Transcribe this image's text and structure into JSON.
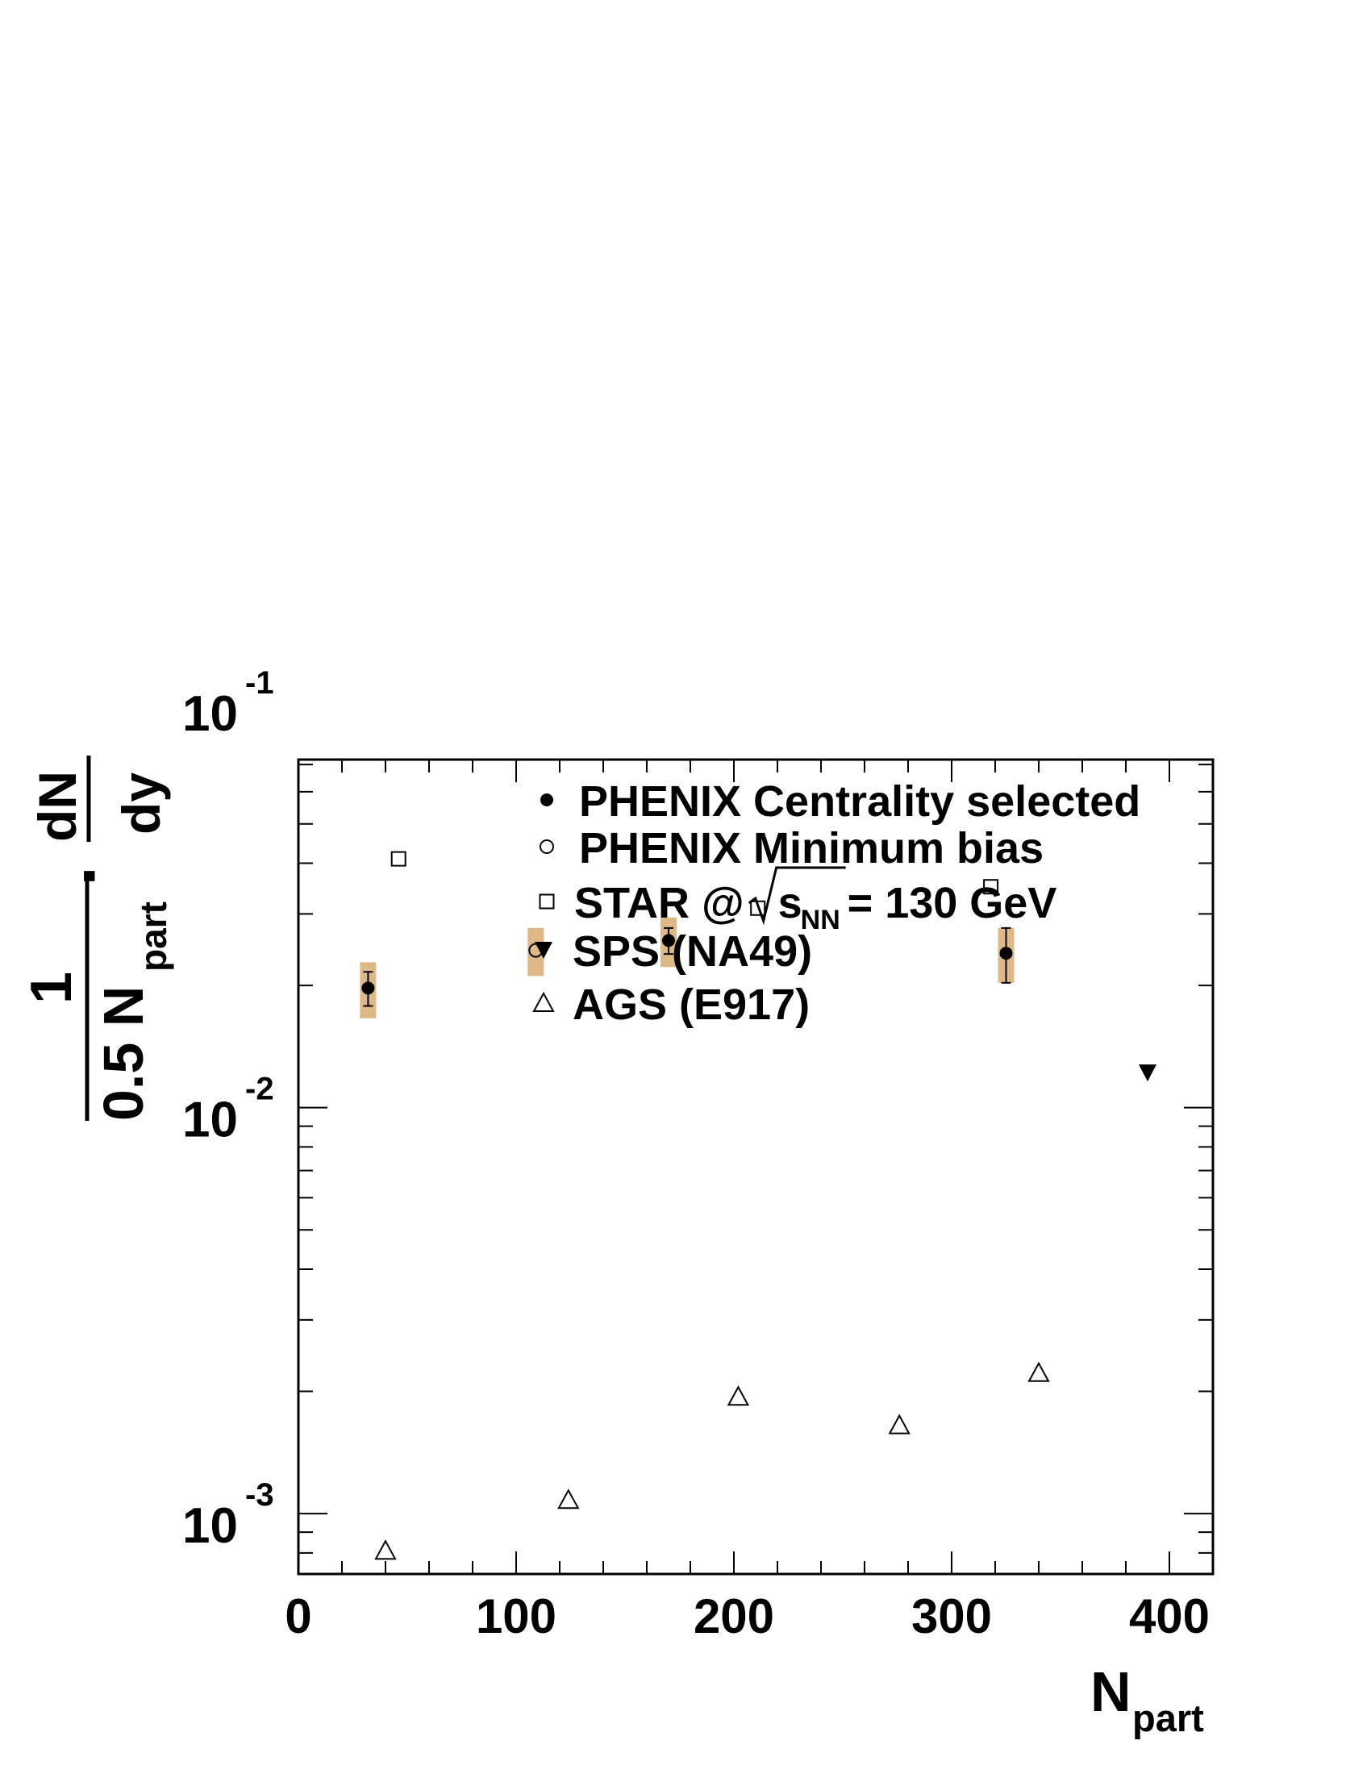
{
  "chart_data": {
    "type": "scatter",
    "title": "",
    "xlabel": "N",
    "xlabel_sub": "part",
    "ylabel_numerator": "1",
    "ylabel_denominator": "0.5 N",
    "ylabel_denominator_sub": "part",
    "ylabel_dot": "·",
    "ylabel_deriv_top": "dN",
    "ylabel_deriv_bottom": "dy",
    "x_scale": "linear",
    "y_scale": "log",
    "xlim": [
      0,
      420
    ],
    "ylim": [
      0.00071,
      0.072
    ],
    "x_ticks": [
      {
        "value": 0,
        "label": "0"
      },
      {
        "value": 100,
        "label": "100"
      },
      {
        "value": 200,
        "label": "200"
      },
      {
        "value": 300,
        "label": "300"
      },
      {
        "value": 400,
        "label": "400"
      }
    ],
    "y_ticks": [
      {
        "value": 0.001,
        "base": "10",
        "exp": "-3"
      },
      {
        "value": 0.01,
        "base": "10",
        "exp": "-2"
      },
      {
        "value": 0.1,
        "base": "10",
        "exp": "-1"
      }
    ],
    "legend": {
      "placement": "top-right",
      "entries": [
        {
          "series": 0,
          "text": "PHENIX Centrality selected"
        },
        {
          "series": 1,
          "text": "PHENIX Minimum bias"
        },
        {
          "series": 2,
          "text_before": "STAR @",
          "sqrt_base": "s",
          "sqrt_sub": "NN",
          "text_after": " = 130 GeV"
        },
        {
          "series": 3,
          "text": "SPS (NA49)"
        },
        {
          "series": 4,
          "text": "AGS (E917)"
        }
      ]
    },
    "colors": {
      "systematic_band": "#deb887",
      "marker": "#000000"
    },
    "series": [
      {
        "marker": "filled-circle",
        "x": [
          32,
          170,
          325
        ],
        "y": [
          0.0197,
          0.0258,
          0.024
        ],
        "stat_err_low": [
          0.0019,
          0.0019,
          0.0037
        ],
        "stat_err_high": [
          0.0019,
          0.0019,
          0.0037
        ],
        "sys_low": [
          0.0031,
          0.0036,
          0.0037
        ],
        "sys_high": [
          0.0031,
          0.0036,
          0.0037
        ]
      },
      {
        "marker": "open-circle",
        "x": [
          109
        ],
        "y": [
          0.0244
        ],
        "sys_low": [
          0.0033
        ],
        "sys_high": [
          0.0033
        ]
      },
      {
        "marker": "open-square",
        "x": [
          46,
          211,
          318
        ],
        "y": [
          0.041,
          0.031,
          0.035
        ]
      },
      {
        "marker": "filled-triangle-down",
        "x": [
          390
        ],
        "y": [
          0.0122
        ]
      },
      {
        "marker": "open-triangle-up",
        "x": [
          40,
          124,
          202,
          276,
          340
        ],
        "y": [
          0.00081,
          0.00108,
          0.00194,
          0.00165,
          0.00222
        ]
      }
    ]
  }
}
